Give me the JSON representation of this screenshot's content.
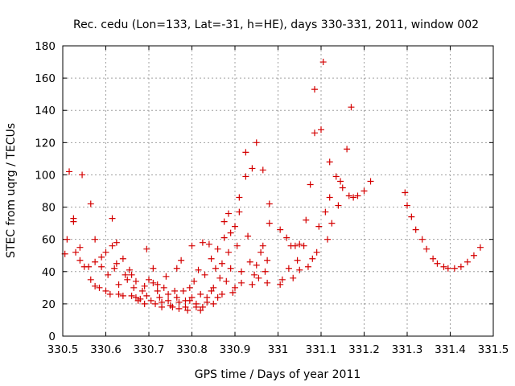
{
  "chart_data": {
    "type": "scatter",
    "title": "Rec. cedu (Lon=133, Lat=-31, h=HE), days 330-331, 2011, window 002",
    "xlabel": "GPS time / Days of year 2011",
    "ylabel": "STEC from uqrg / TECUs",
    "xlim": [
      330.5,
      331.5
    ],
    "ylim": [
      0,
      180
    ],
    "xticks": [
      "330.5",
      "330.6",
      "330.7",
      "330.8",
      "330.9",
      "331",
      "331.1",
      "331.2",
      "331.3",
      "331.4",
      "331.5"
    ],
    "yticks": [
      "0",
      "20",
      "40",
      "60",
      "80",
      "100",
      "120",
      "140",
      "160",
      "180"
    ],
    "grid": true,
    "marker": "+",
    "color": "#d40000",
    "series": [
      {
        "name": "STEC",
        "points": [
          [
            330.505,
            51
          ],
          [
            330.51,
            60
          ],
          [
            330.515,
            102
          ],
          [
            330.525,
            73
          ],
          [
            330.525,
            71
          ],
          [
            330.53,
            52
          ],
          [
            330.54,
            47
          ],
          [
            330.54,
            55
          ],
          [
            330.545,
            100
          ],
          [
            330.55,
            43
          ],
          [
            330.56,
            43
          ],
          [
            330.565,
            35
          ],
          [
            330.565,
            82
          ],
          [
            330.575,
            60
          ],
          [
            330.575,
            46
          ],
          [
            330.575,
            31
          ],
          [
            330.585,
            30
          ],
          [
            330.59,
            43
          ],
          [
            330.59,
            49
          ],
          [
            330.6,
            52
          ],
          [
            330.6,
            28
          ],
          [
            330.605,
            38
          ],
          [
            330.61,
            26
          ],
          [
            330.615,
            73
          ],
          [
            330.615,
            56
          ],
          [
            330.62,
            42
          ],
          [
            330.625,
            58
          ],
          [
            330.625,
            45
          ],
          [
            330.63,
            32
          ],
          [
            330.63,
            26
          ],
          [
            330.64,
            48
          ],
          [
            330.64,
            25
          ],
          [
            330.645,
            38
          ],
          [
            330.65,
            35
          ],
          [
            330.655,
            41
          ],
          [
            330.66,
            25
          ],
          [
            330.66,
            38
          ],
          [
            330.665,
            30
          ],
          [
            330.67,
            34
          ],
          [
            330.67,
            24
          ],
          [
            330.675,
            22
          ],
          [
            330.68,
            23
          ],
          [
            330.685,
            28
          ],
          [
            330.69,
            31
          ],
          [
            330.69,
            20
          ],
          [
            330.695,
            25
          ],
          [
            330.695,
            54
          ],
          [
            330.7,
            35
          ],
          [
            330.705,
            22
          ],
          [
            330.71,
            42
          ],
          [
            330.71,
            33
          ],
          [
            330.715,
            20
          ],
          [
            330.72,
            28
          ],
          [
            330.72,
            32
          ],
          [
            330.725,
            24
          ],
          [
            330.73,
            21
          ],
          [
            330.73,
            18
          ],
          [
            330.735,
            30
          ],
          [
            330.74,
            37
          ],
          [
            330.745,
            22
          ],
          [
            330.745,
            26
          ],
          [
            330.75,
            19
          ],
          [
            330.755,
            18
          ],
          [
            330.76,
            28
          ],
          [
            330.765,
            42
          ],
          [
            330.765,
            24
          ],
          [
            330.77,
            21
          ],
          [
            330.77,
            17
          ],
          [
            330.775,
            47
          ],
          [
            330.78,
            28
          ],
          [
            330.785,
            22
          ],
          [
            330.785,
            18
          ],
          [
            330.79,
            16
          ],
          [
            330.795,
            30
          ],
          [
            330.795,
            22
          ],
          [
            330.8,
            24
          ],
          [
            330.8,
            56
          ],
          [
            330.805,
            34
          ],
          [
            330.81,
            20
          ],
          [
            330.81,
            18
          ],
          [
            330.815,
            41
          ],
          [
            330.82,
            26
          ],
          [
            330.82,
            16
          ],
          [
            330.825,
            58
          ],
          [
            330.825,
            18
          ],
          [
            330.83,
            38
          ],
          [
            330.835,
            24
          ],
          [
            330.835,
            21
          ],
          [
            330.84,
            57
          ],
          [
            330.845,
            48
          ],
          [
            330.845,
            28
          ],
          [
            330.85,
            30
          ],
          [
            330.85,
            20
          ],
          [
            330.855,
            42
          ],
          [
            330.86,
            54
          ],
          [
            330.86,
            24
          ],
          [
            330.865,
            36
          ],
          [
            330.87,
            45
          ],
          [
            330.87,
            26
          ],
          [
            330.875,
            71
          ],
          [
            330.875,
            61
          ],
          [
            330.88,
            34
          ],
          [
            330.885,
            76
          ],
          [
            330.885,
            52
          ],
          [
            330.89,
            64
          ],
          [
            330.89,
            42
          ],
          [
            330.895,
            27
          ],
          [
            330.9,
            68
          ],
          [
            330.9,
            30
          ],
          [
            330.905,
            56
          ],
          [
            330.91,
            86
          ],
          [
            330.91,
            77
          ],
          [
            330.915,
            40
          ],
          [
            330.915,
            33
          ],
          [
            330.925,
            114
          ],
          [
            330.925,
            99
          ],
          [
            330.93,
            62
          ],
          [
            330.935,
            46
          ],
          [
            330.94,
            104
          ],
          [
            330.94,
            32
          ],
          [
            330.945,
            38
          ],
          [
            330.95,
            120
          ],
          [
            330.95,
            44
          ],
          [
            330.955,
            36
          ],
          [
            330.96,
            52
          ],
          [
            330.965,
            103
          ],
          [
            330.965,
            56
          ],
          [
            330.97,
            40
          ],
          [
            330.975,
            47
          ],
          [
            330.975,
            33
          ],
          [
            330.98,
            82
          ],
          [
            330.98,
            70
          ],
          [
            331.005,
            66
          ],
          [
            331.005,
            32
          ],
          [
            331.01,
            35
          ],
          [
            331.02,
            61
          ],
          [
            331.025,
            42
          ],
          [
            331.03,
            56
          ],
          [
            331.035,
            36
          ],
          [
            331.04,
            56
          ],
          [
            331.045,
            47
          ],
          [
            331.05,
            57
          ],
          [
            331.05,
            41
          ],
          [
            331.06,
            56
          ],
          [
            331.065,
            72
          ],
          [
            331.07,
            43
          ],
          [
            331.075,
            94
          ],
          [
            331.08,
            48
          ],
          [
            331.085,
            153
          ],
          [
            331.085,
            126
          ],
          [
            331.09,
            52
          ],
          [
            331.095,
            68
          ],
          [
            331.1,
            128
          ],
          [
            331.105,
            170
          ],
          [
            331.11,
            77
          ],
          [
            331.115,
            60
          ],
          [
            331.12,
            108
          ],
          [
            331.12,
            86
          ],
          [
            331.125,
            70
          ],
          [
            331.135,
            99
          ],
          [
            331.14,
            81
          ],
          [
            331.145,
            96
          ],
          [
            331.15,
            92
          ],
          [
            331.16,
            116
          ],
          [
            331.165,
            87
          ],
          [
            331.17,
            142
          ],
          [
            331.175,
            86
          ],
          [
            331.185,
            87
          ],
          [
            331.2,
            90
          ],
          [
            331.215,
            96
          ],
          [
            331.295,
            89
          ],
          [
            331.3,
            81
          ],
          [
            331.31,
            74
          ],
          [
            331.32,
            66
          ],
          [
            331.335,
            60
          ],
          [
            331.345,
            54
          ],
          [
            331.36,
            48
          ],
          [
            331.37,
            45
          ],
          [
            331.385,
            43
          ],
          [
            331.395,
            42
          ],
          [
            331.41,
            42
          ],
          [
            331.425,
            43
          ],
          [
            331.44,
            46
          ],
          [
            331.455,
            50
          ],
          [
            331.47,
            55
          ]
        ]
      }
    ]
  }
}
